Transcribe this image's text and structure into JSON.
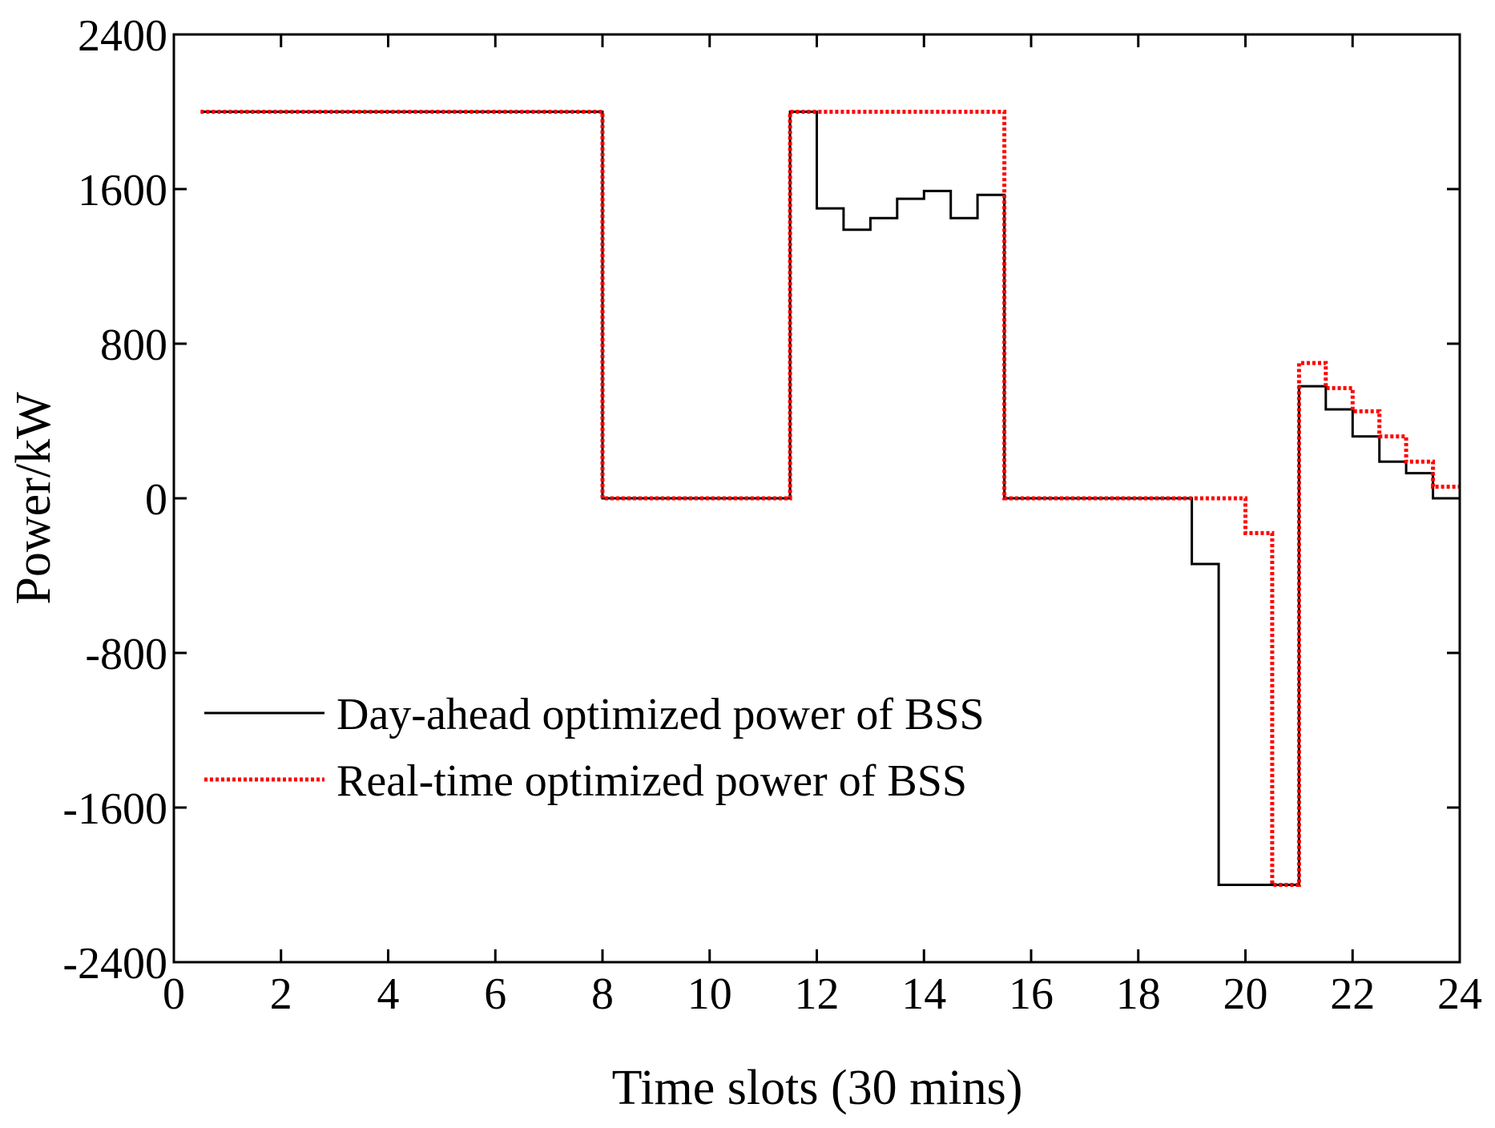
{
  "chart_data": {
    "type": "line",
    "title": "",
    "xlabel": "Time slots (30 mins)",
    "ylabel": "Power/kW",
    "xlim": [
      0,
      24
    ],
    "ylim": [
      -2400,
      2400
    ],
    "xticks": [
      0,
      2,
      4,
      6,
      8,
      10,
      12,
      14,
      16,
      18,
      20,
      22,
      24
    ],
    "yticks": [
      -2400,
      -1600,
      -800,
      0,
      800,
      1600,
      2400
    ],
    "grid": false,
    "legend_position": "lower-left",
    "step": "post",
    "series": [
      {
        "name": "Day-ahead optimized power of BSS",
        "color": "#000000",
        "style": "solid",
        "x": [
          0.5,
          1,
          1.5,
          2,
          2.5,
          3,
          3.5,
          4,
          4.5,
          5,
          5.5,
          6,
          6.5,
          7,
          7.5,
          8,
          8.5,
          9,
          9.5,
          10,
          10.5,
          11,
          11.5,
          12,
          12.5,
          13,
          13.5,
          14,
          14.5,
          15,
          15.5,
          16,
          16.5,
          17,
          17.5,
          18,
          18.5,
          19,
          19.5,
          20,
          20.5,
          21,
          21.5,
          22,
          22.5,
          23,
          23.5,
          24
        ],
        "values": [
          2000,
          2000,
          2000,
          2000,
          2000,
          2000,
          2000,
          2000,
          2000,
          2000,
          2000,
          2000,
          2000,
          2000,
          2000,
          0,
          0,
          0,
          0,
          0,
          0,
          0,
          2000,
          1500,
          1390,
          1450,
          1550,
          1590,
          1450,
          1570,
          0,
          0,
          0,
          0,
          0,
          0,
          0,
          -340,
          -2000,
          -2000,
          -2000,
          580,
          460,
          320,
          190,
          130,
          0,
          0
        ]
      },
      {
        "name": "Real-time optimized power of BSS",
        "color": "#ff0000",
        "style": "dotted",
        "x": [
          0.5,
          1,
          1.5,
          2,
          2.5,
          3,
          3.5,
          4,
          4.5,
          5,
          5.5,
          6,
          6.5,
          7,
          7.5,
          8,
          8.5,
          9,
          9.5,
          10,
          10.5,
          11,
          11.5,
          12,
          12.5,
          13,
          13.5,
          14,
          14.5,
          15,
          15.5,
          16,
          16.5,
          17,
          17.5,
          18,
          18.5,
          19,
          19.5,
          20,
          20.5,
          21,
          21.5,
          22,
          22.5,
          23,
          23.5,
          24
        ],
        "values": [
          2000,
          2000,
          2000,
          2000,
          2000,
          2000,
          2000,
          2000,
          2000,
          2000,
          2000,
          2000,
          2000,
          2000,
          2000,
          0,
          0,
          0,
          0,
          0,
          0,
          0,
          2000,
          2000,
          2000,
          2000,
          2000,
          2000,
          2000,
          2000,
          0,
          0,
          0,
          0,
          0,
          0,
          0,
          0,
          0,
          -180,
          -2000,
          700,
          570,
          450,
          320,
          190,
          60,
          60
        ]
      }
    ]
  }
}
